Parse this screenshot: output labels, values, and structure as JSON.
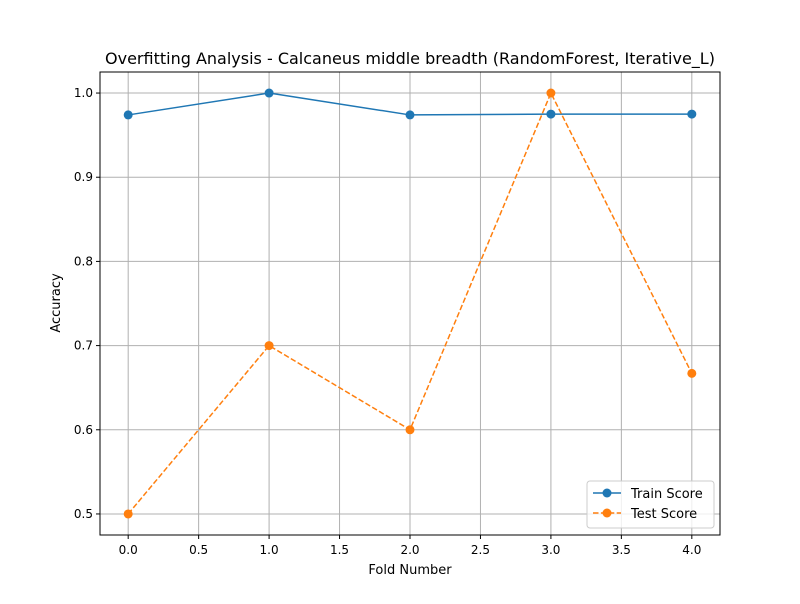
{
  "chart_data": {
    "type": "line",
    "title": "Overfitting Analysis - Calcaneus middle breadth (RandomForest, Iterative_L)",
    "xlabel": "Fold Number",
    "ylabel": "Accuracy",
    "x": [
      0,
      1,
      2,
      3,
      4
    ],
    "xlim": [
      -0.2,
      4.2
    ],
    "ylim": [
      0.475,
      1.025
    ],
    "xticks": [
      "0.0",
      "0.5",
      "1.0",
      "1.5",
      "2.0",
      "2.5",
      "3.0",
      "3.5",
      "4.0"
    ],
    "yticks": [
      "0.5",
      "0.6",
      "0.7",
      "0.8",
      "0.9",
      "1.0"
    ],
    "grid": true,
    "legend_position": "lower right",
    "series": [
      {
        "name": "Train Score",
        "values": [
          0.974,
          1.0,
          0.974,
          0.975,
          0.975
        ],
        "color": "#1f77b4",
        "line_style": "solid",
        "marker": "circle"
      },
      {
        "name": "Test Score",
        "values": [
          0.5,
          0.7,
          0.6,
          1.0,
          0.667
        ],
        "color": "#ff7f0e",
        "line_style": "dashed",
        "marker": "circle"
      }
    ]
  }
}
